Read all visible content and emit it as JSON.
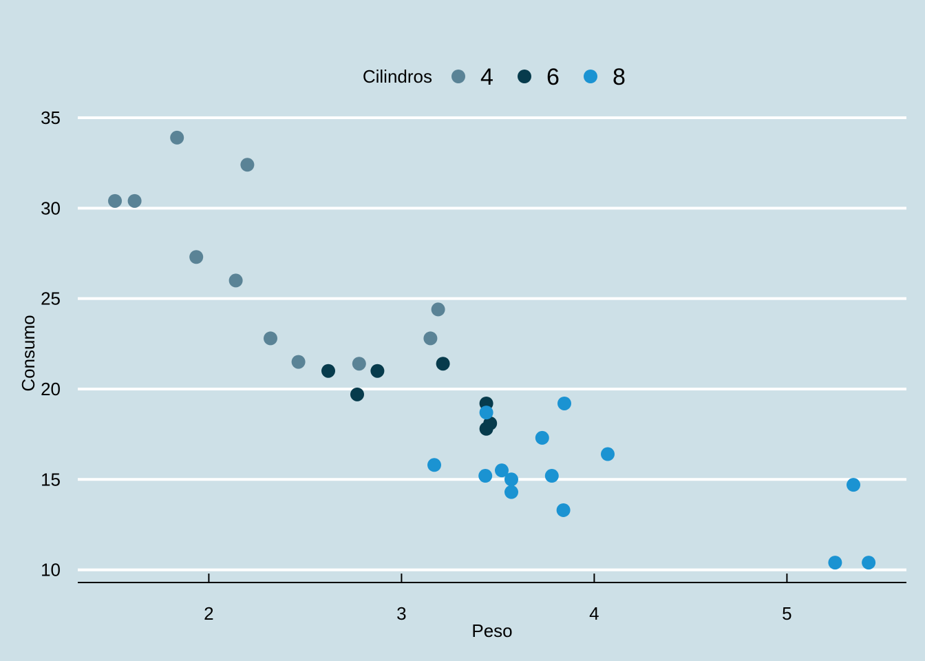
{
  "chart_data": {
    "type": "scatter",
    "title": "",
    "xlabel": "Peso",
    "ylabel": "Consumo",
    "xlim": [
      1.32,
      5.62
    ],
    "ylim": [
      9.3,
      35.8
    ],
    "x_ticks": [
      2,
      3,
      4,
      5
    ],
    "y_ticks": [
      10,
      15,
      20,
      25,
      30,
      35
    ],
    "grid": "horizontal major lines",
    "background": "#cde0e7",
    "legend": {
      "title": "Cilindros",
      "position": "top"
    },
    "series": [
      {
        "name": "4",
        "color": "#5a8396",
        "points": [
          {
            "x": 2.32,
            "y": 22.8
          },
          {
            "x": 3.19,
            "y": 24.4
          },
          {
            "x": 3.15,
            "y": 22.8
          },
          {
            "x": 2.2,
            "y": 32.4
          },
          {
            "x": 1.615,
            "y": 30.4
          },
          {
            "x": 1.835,
            "y": 33.9
          },
          {
            "x": 2.465,
            "y": 21.5
          },
          {
            "x": 1.935,
            "y": 27.3
          },
          {
            "x": 2.14,
            "y": 26.0
          },
          {
            "x": 1.513,
            "y": 30.4
          },
          {
            "x": 2.78,
            "y": 21.4
          }
        ]
      },
      {
        "name": "6",
        "color": "#073b4c",
        "points": [
          {
            "x": 2.62,
            "y": 21.0
          },
          {
            "x": 2.875,
            "y": 21.0
          },
          {
            "x": 3.215,
            "y": 21.4
          },
          {
            "x": 3.46,
            "y": 18.1
          },
          {
            "x": 3.44,
            "y": 19.2
          },
          {
            "x": 3.44,
            "y": 17.8
          },
          {
            "x": 2.77,
            "y": 19.7
          }
        ]
      },
      {
        "name": "8",
        "color": "#1b93d2",
        "points": [
          {
            "x": 3.44,
            "y": 18.7
          },
          {
            "x": 3.57,
            "y": 14.3
          },
          {
            "x": 4.07,
            "y": 16.4
          },
          {
            "x": 3.73,
            "y": 17.3
          },
          {
            "x": 3.78,
            "y": 15.2
          },
          {
            "x": 5.25,
            "y": 10.4
          },
          {
            "x": 5.424,
            "y": 10.4
          },
          {
            "x": 5.345,
            "y": 14.7
          },
          {
            "x": 3.52,
            "y": 15.5
          },
          {
            "x": 3.435,
            "y": 15.2
          },
          {
            "x": 3.84,
            "y": 13.3
          },
          {
            "x": 3.845,
            "y": 19.2
          },
          {
            "x": 3.17,
            "y": 15.8
          },
          {
            "x": 3.57,
            "y": 15.0
          }
        ]
      }
    ]
  }
}
